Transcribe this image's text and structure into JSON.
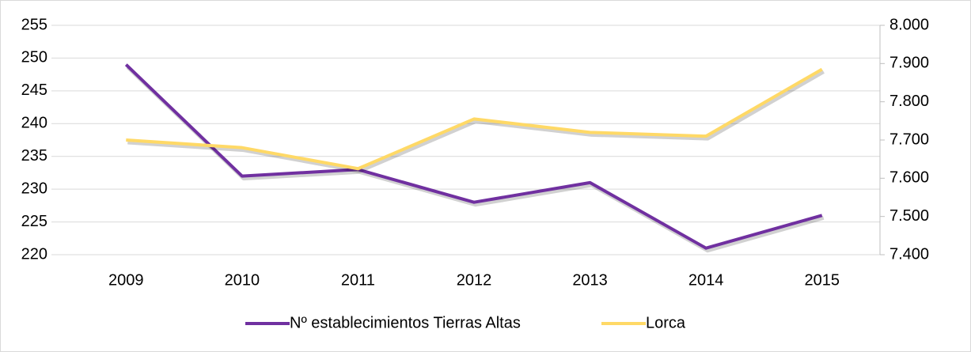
{
  "chart_data": {
    "type": "line",
    "categories": [
      "2009",
      "2010",
      "2011",
      "2012",
      "2013",
      "2014",
      "2015"
    ],
    "series": [
      {
        "name": "Nº establecimientos Tierras Altas",
        "color": "#7030a0",
        "values": [
          249,
          232,
          233,
          228,
          231,
          221,
          226
        ]
      },
      {
        "name": "Lorca",
        "color": "#ffd966",
        "axis": "y2",
        "values": [
          7700,
          7680,
          7625,
          7755,
          7720,
          7710,
          7885
        ]
      }
    ],
    "ylim": [
      220,
      255
    ],
    "yticks": [
      220,
      225,
      230,
      235,
      240,
      245,
      250,
      255
    ],
    "y2lim": [
      7400,
      8000
    ],
    "y2ticks": [
      {
        "value": 7400,
        "label": "7.400"
      },
      {
        "value": 7500,
        "label": "7.500"
      },
      {
        "value": 7600,
        "label": "7.600"
      },
      {
        "value": 7700,
        "label": "7.700"
      },
      {
        "value": 7800,
        "label": "7.800"
      },
      {
        "value": 7900,
        "label": "7.900"
      },
      {
        "value": 8000,
        "label": "8.000"
      }
    ],
    "grid": true,
    "legend": "bottom"
  }
}
